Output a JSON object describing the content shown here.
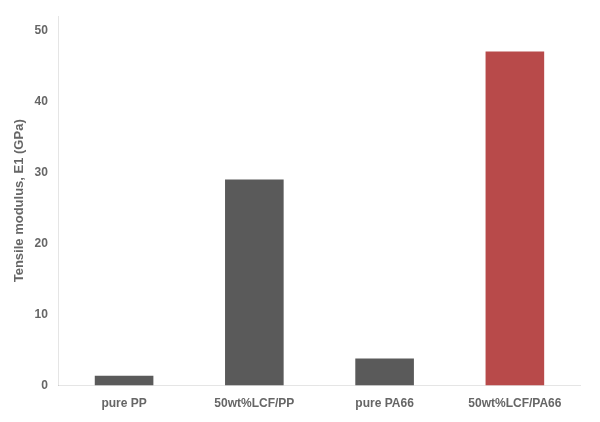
{
  "chart_data": {
    "type": "bar",
    "categories": [
      "pure PP",
      "50wt%LCF/PP",
      "pure PA66",
      "50wt%LCF/PA66"
    ],
    "values": [
      1.4,
      29.0,
      3.8,
      47.0
    ],
    "colors": [
      "#5a5a5a",
      "#5a5a5a",
      "#5a5a5a",
      "#b84a4a"
    ],
    "ylabel": "Tensile modulus, E1 (GPa)",
    "ylim": [
      0,
      52
    ],
    "yticks": [
      0,
      10,
      20,
      30,
      40,
      50
    ],
    "grid": false
  }
}
